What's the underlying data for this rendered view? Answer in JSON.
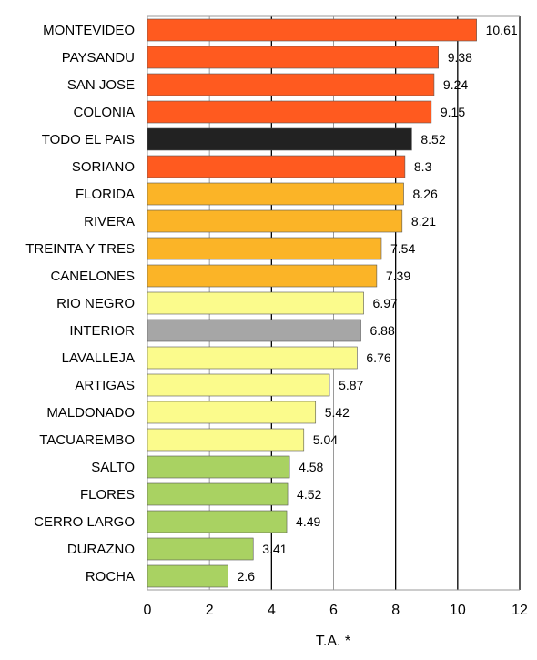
{
  "chart_data": {
    "type": "bar",
    "orientation": "horizontal",
    "title": "",
    "xlabel": "T.A. *",
    "ylabel": "",
    "xlim": [
      0,
      12
    ],
    "xticks": [
      0,
      2,
      4,
      6,
      8,
      10,
      12
    ],
    "grid": "vertical gridlines at each x tick",
    "categories": [
      "MONTEVIDEO",
      "PAYSANDU",
      "SAN JOSE",
      "COLONIA",
      "TODO EL PAIS",
      "SORIANO",
      "FLORIDA",
      "RIVERA",
      "TREINTA Y TRES",
      "CANELONES",
      "RIO NEGRO",
      "INTERIOR",
      "LAVALLEJA",
      "ARTIGAS",
      "MALDONADO",
      "TACUAREMBO",
      "SALTO",
      "FLORES",
      "CERRO LARGO",
      "DURAZNO",
      "ROCHA"
    ],
    "values": [
      10.61,
      9.38,
      9.24,
      9.15,
      8.52,
      8.3,
      8.26,
      8.21,
      7.54,
      7.39,
      6.97,
      6.88,
      6.76,
      5.87,
      5.42,
      5.04,
      4.58,
      4.52,
      4.49,
      3.41,
      2.6
    ],
    "value_labels": [
      "10.61",
      "9.38",
      "9.24",
      "9.15",
      "8.52",
      "8.3",
      "8.26",
      "8.21",
      "7.54",
      "7.39",
      "6.97",
      "6.88",
      "6.76",
      "5.87",
      "5.42",
      "5.04",
      "4.58",
      "4.52",
      "4.49",
      "3.41",
      "2.6"
    ],
    "bar_colors": [
      "#ff5a1f",
      "#ff5a1f",
      "#ff5a1f",
      "#ff5a1f",
      "#222222",
      "#ff5a1f",
      "#fbb427",
      "#fbb427",
      "#fbb427",
      "#fbb427",
      "#fbfb8c",
      "#a6a6a6",
      "#fbfb8c",
      "#fbfb8c",
      "#fbfb8c",
      "#fbfb8c",
      "#a9d262",
      "#a9d262",
      "#a9d262",
      "#a9d262",
      "#a9d262"
    ]
  }
}
